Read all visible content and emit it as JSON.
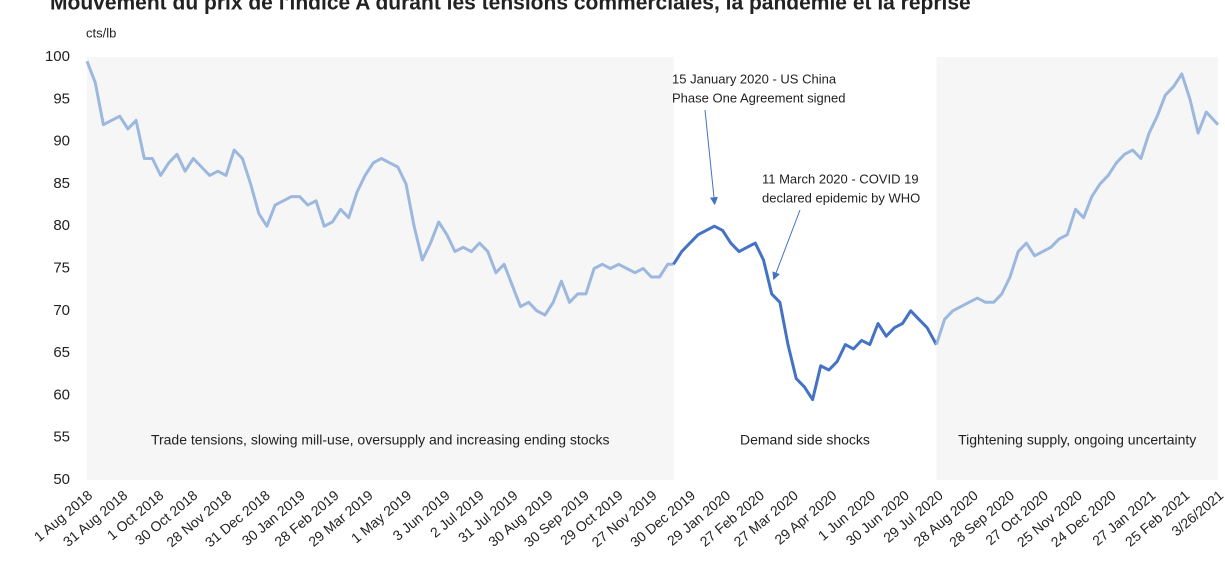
{
  "chart_data": {
    "type": "line",
    "title": "Mouvement du prix de l'indice A durant les tensions commerciales, la pandémie et la reprise",
    "y_label": "cts/lb",
    "ylim": [
      50,
      100
    ],
    "yticks": [
      50,
      55,
      60,
      65,
      70,
      75,
      80,
      85,
      90,
      95,
      100
    ],
    "xlim": [
      "2018-08-01",
      "2021-03-26"
    ],
    "xticks": [
      {
        "value": "2018-08-01",
        "label": "1 Aug 2018"
      },
      {
        "value": "2018-08-31",
        "label": "31 Aug 2018"
      },
      {
        "value": "2018-10-01",
        "label": "1 Oct 2018"
      },
      {
        "value": "2018-10-30",
        "label": "30 Oct 2018"
      },
      {
        "value": "2018-11-28",
        "label": "28 Nov 2018"
      },
      {
        "value": "2018-12-31",
        "label": "31 Dec 2018"
      },
      {
        "value": "2019-01-30",
        "label": "30 Jan 2019"
      },
      {
        "value": "2019-02-28",
        "label": "28 Feb 2019"
      },
      {
        "value": "2019-03-29",
        "label": "29 Mar 2019"
      },
      {
        "value": "2019-05-01",
        "label": "1 May 2019"
      },
      {
        "value": "2019-06-03",
        "label": "3 Jun 2019"
      },
      {
        "value": "2019-07-02",
        "label": "2 Jul 2019"
      },
      {
        "value": "2019-07-31",
        "label": "31 Jul 2019"
      },
      {
        "value": "2019-08-30",
        "label": "30 Aug 2019"
      },
      {
        "value": "2019-09-30",
        "label": "30 Sep 2019"
      },
      {
        "value": "2019-10-29",
        "label": "29 Oct 2019"
      },
      {
        "value": "2019-11-27",
        "label": "27 Nov 2019"
      },
      {
        "value": "2019-12-30",
        "label": "30 Dec 2019"
      },
      {
        "value": "2020-01-29",
        "label": "29 Jan 2020"
      },
      {
        "value": "2020-02-27",
        "label": "27 Feb 2020"
      },
      {
        "value": "2020-03-27",
        "label": "27 Mar 2020"
      },
      {
        "value": "2020-04-29",
        "label": "29 Apr 2020"
      },
      {
        "value": "2020-06-01",
        "label": "1 Jun 2020"
      },
      {
        "value": "2020-06-30",
        "label": "30 Jun 2020"
      },
      {
        "value": "2020-07-29",
        "label": "29 Jul 2020"
      },
      {
        "value": "2020-08-28",
        "label": "28 Aug 2020"
      },
      {
        "value": "2020-09-28",
        "label": "28 Sep 2020"
      },
      {
        "value": "2020-10-27",
        "label": "27 Oct 2020"
      },
      {
        "value": "2020-11-25",
        "label": "25 Nov 2020"
      },
      {
        "value": "2020-12-24",
        "label": "24 Dec 2020"
      },
      {
        "value": "2021-01-27",
        "label": "27 Jan 2021"
      },
      {
        "value": "2021-02-25",
        "label": "25 Feb 2021"
      },
      {
        "value": "2021-03-26",
        "label": "3/26/2021"
      }
    ],
    "regions": [
      {
        "start": "2018-08-01",
        "end": "2019-12-16",
        "shaded": true,
        "label": "Trade tensions,  slowing mill-use,  oversupply  and increasing ending stocks"
      },
      {
        "start": "2019-12-16",
        "end": "2020-07-28",
        "shaded": false,
        "label": "Demand side shocks"
      },
      {
        "start": "2020-07-28",
        "end": "2021-03-26",
        "shaded": true,
        "label": "Tightening supply,  ongoing uncertainty"
      }
    ],
    "annotations": [
      {
        "x": "2020-01-15",
        "lines": [
          "15 January 2020 - US China",
          "Phase One Agreement signed"
        ]
      },
      {
        "x": "2020-03-11",
        "lines": [
          "11 March 2020 - COVID  19",
          "declared epidemic by WHO"
        ]
      }
    ],
    "series": [
      {
        "color": "#9db8de",
        "x": [
          "2018-08-01",
          "2018-08-08",
          "2018-08-15",
          "2018-08-22",
          "2018-08-29",
          "2018-09-05",
          "2018-09-12",
          "2018-09-19",
          "2018-09-26",
          "2018-10-03",
          "2018-10-10",
          "2018-10-17",
          "2018-10-24",
          "2018-10-31",
          "2018-11-07",
          "2018-11-14",
          "2018-11-21",
          "2018-11-28",
          "2018-12-05",
          "2018-12-12",
          "2018-12-19",
          "2018-12-26",
          "2019-01-02",
          "2019-01-09",
          "2019-01-16",
          "2019-01-23",
          "2019-01-30",
          "2019-02-06",
          "2019-02-13",
          "2019-02-20",
          "2019-02-27",
          "2019-03-06",
          "2019-03-13",
          "2019-03-20",
          "2019-03-27",
          "2019-04-03",
          "2019-04-10",
          "2019-04-17",
          "2019-04-24",
          "2019-05-01",
          "2019-05-08",
          "2019-05-15",
          "2019-05-22",
          "2019-05-29",
          "2019-06-05",
          "2019-06-12",
          "2019-06-19",
          "2019-06-26",
          "2019-07-03",
          "2019-07-10",
          "2019-07-17",
          "2019-07-24",
          "2019-07-31",
          "2019-08-07",
          "2019-08-14",
          "2019-08-21",
          "2019-08-28",
          "2019-09-04",
          "2019-09-11",
          "2019-09-18",
          "2019-09-25",
          "2019-10-02",
          "2019-10-09",
          "2019-10-16",
          "2019-10-23",
          "2019-10-30",
          "2019-11-06",
          "2019-11-13",
          "2019-11-20",
          "2019-11-27",
          "2019-12-04",
          "2019-12-11",
          "2019-12-16"
        ],
        "values": [
          99.5,
          97,
          92,
          92.5,
          93,
          91.5,
          92.5,
          88,
          88,
          86,
          87.5,
          88.5,
          86.5,
          88,
          87,
          86,
          86.5,
          86,
          89,
          88,
          85,
          81.5,
          80,
          82.5,
          83,
          83.5,
          83.5,
          82.5,
          83,
          80,
          80.5,
          82,
          81,
          84,
          86,
          87.5,
          88,
          87.5,
          87,
          85,
          80,
          76,
          78,
          80.5,
          79,
          77,
          77.5,
          77,
          78,
          77,
          74.5,
          75.5,
          73,
          70.5,
          71,
          70,
          69.5,
          71,
          73.5,
          71,
          72,
          72,
          75,
          75.5,
          75,
          75.5,
          75,
          74.5,
          75,
          74,
          74,
          75.5,
          75.5
        ]
      },
      {
        "color": "#4472c4",
        "x": [
          "2019-12-16",
          "2019-12-23",
          "2019-12-30",
          "2020-01-06",
          "2020-01-13",
          "2020-01-20",
          "2020-01-27",
          "2020-02-03",
          "2020-02-10",
          "2020-02-17",
          "2020-02-24",
          "2020-03-02",
          "2020-03-09",
          "2020-03-16",
          "2020-03-23",
          "2020-03-30",
          "2020-04-06",
          "2020-04-13",
          "2020-04-20",
          "2020-04-27",
          "2020-05-04",
          "2020-05-11",
          "2020-05-18",
          "2020-05-25",
          "2020-06-01",
          "2020-06-08",
          "2020-06-15",
          "2020-06-22",
          "2020-06-29",
          "2020-07-06",
          "2020-07-13",
          "2020-07-20",
          "2020-07-28"
        ],
        "values": [
          75.5,
          77,
          78,
          79,
          79.5,
          80,
          79.5,
          78,
          77,
          77.5,
          78,
          76,
          72,
          71,
          66,
          62,
          61,
          59.5,
          63.5,
          63,
          64,
          66,
          65.5,
          66.5,
          66,
          68.5,
          67,
          68,
          68.5,
          70,
          69,
          68,
          66
        ]
      },
      {
        "color": "#9db8de",
        "x": [
          "2020-07-28",
          "2020-08-04",
          "2020-08-11",
          "2020-08-18",
          "2020-08-25",
          "2020-09-01",
          "2020-09-08",
          "2020-09-15",
          "2020-09-22",
          "2020-09-29",
          "2020-10-06",
          "2020-10-13",
          "2020-10-20",
          "2020-10-27",
          "2020-11-03",
          "2020-11-10",
          "2020-11-17",
          "2020-11-24",
          "2020-12-01",
          "2020-12-08",
          "2020-12-15",
          "2020-12-22",
          "2020-12-29",
          "2021-01-05",
          "2021-01-12",
          "2021-01-19",
          "2021-01-26",
          "2021-02-02",
          "2021-02-09",
          "2021-02-16",
          "2021-02-23",
          "2021-03-02",
          "2021-03-09",
          "2021-03-16",
          "2021-03-26"
        ],
        "values": [
          66,
          69,
          70,
          70.5,
          71,
          71.5,
          71,
          71,
          72,
          74,
          77,
          78,
          76.5,
          77,
          77.5,
          78.5,
          79,
          82,
          81,
          83.5,
          85,
          86,
          87.5,
          88.5,
          89,
          88,
          91,
          93,
          95.5,
          96.5,
          98,
          95,
          91,
          93.5,
          92
        ]
      }
    ]
  }
}
